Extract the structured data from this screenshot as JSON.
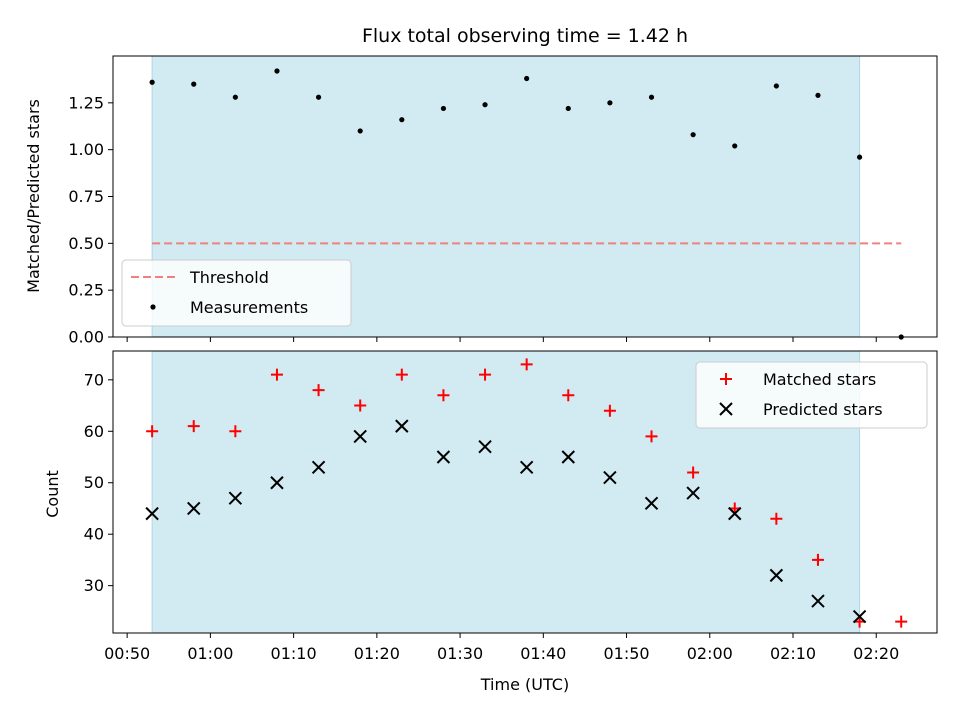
{
  "chart_data": [
    {
      "type": "scatter",
      "title": "Flux total observing time = 1.42 h",
      "ylabel": "Matched/Predicted stars",
      "xlabel": "",
      "ylim": [
        0,
        1.5
      ],
      "yticks": [
        "0.00",
        "0.25",
        "0.50",
        "0.75",
        "1.00",
        "1.25"
      ],
      "shaded_range": [
        "00:53",
        "02:18"
      ],
      "shade_color": "#add8e6",
      "threshold": {
        "name": "Threshold",
        "value": 0.5,
        "x_range": [
          "00:53",
          "02:23"
        ],
        "color": "#f08080"
      },
      "series": [
        {
          "name": "Measurements",
          "color": "#000000",
          "marker": "dot",
          "x": [
            "00:53",
            "00:58",
            "01:03",
            "01:08",
            "01:13",
            "01:18",
            "01:23",
            "01:28",
            "01:33",
            "01:38",
            "01:43",
            "01:48",
            "01:53",
            "01:58",
            "02:03",
            "02:08",
            "02:13",
            "02:18",
            "02:23"
          ],
          "y": [
            1.36,
            1.35,
            1.28,
            1.42,
            1.28,
            1.1,
            1.16,
            1.22,
            1.24,
            1.38,
            1.22,
            1.25,
            1.28,
            1.08,
            1.02,
            1.34,
            1.29,
            0.96,
            0.0
          ]
        }
      ],
      "legend_position": "lower-left",
      "grid": false
    },
    {
      "type": "scatter",
      "title": "",
      "ylabel": "Count",
      "xlabel": "Time (UTC)",
      "ylim": [
        20.8,
        75.6
      ],
      "yticks": [
        "30",
        "40",
        "50",
        "60",
        "70"
      ],
      "xlim": [
        "00:48.3",
        "02:27.3"
      ],
      "xticks": [
        "00:50",
        "01:00",
        "01:10",
        "01:20",
        "01:30",
        "01:40",
        "01:50",
        "02:00",
        "02:10",
        "02:20"
      ],
      "shaded_range": [
        "00:53",
        "02:18"
      ],
      "shade_color": "#add8e6",
      "series": [
        {
          "name": "Matched stars",
          "color": "#ff0000",
          "marker": "plus",
          "x": [
            "00:53",
            "00:58",
            "01:03",
            "01:08",
            "01:13",
            "01:18",
            "01:23",
            "01:28",
            "01:33",
            "01:38",
            "01:43",
            "01:48",
            "01:53",
            "01:58",
            "02:03",
            "02:08",
            "02:13",
            "02:18",
            "02:23"
          ],
          "y": [
            60,
            61,
            60,
            71,
            68,
            65,
            71,
            67,
            71,
            73,
            67,
            64,
            59,
            52,
            45,
            43,
            35,
            23,
            23
          ]
        },
        {
          "name": "Predicted stars",
          "color": "#000000",
          "marker": "x",
          "x": [
            "00:53",
            "00:58",
            "01:03",
            "01:08",
            "01:13",
            "01:18",
            "01:23",
            "01:28",
            "01:33",
            "01:38",
            "01:43",
            "01:48",
            "01:53",
            "01:58",
            "02:03",
            "02:08",
            "02:13",
            "02:18"
          ],
          "y": [
            44,
            45,
            47,
            50,
            53,
            59,
            61,
            55,
            57,
            53,
            55,
            51,
            46,
            48,
            44,
            32,
            27,
            24
          ]
        }
      ],
      "legend_position": "top-right",
      "grid": false
    }
  ]
}
